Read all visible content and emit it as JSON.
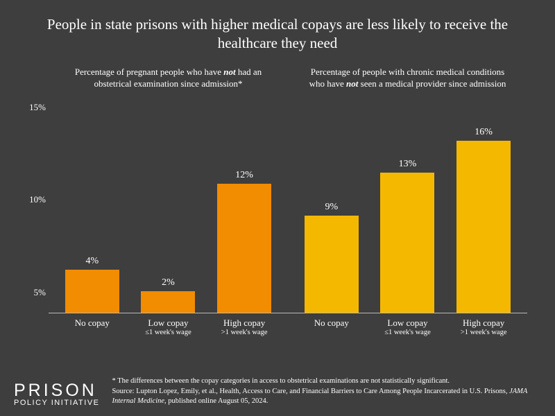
{
  "title": "People in state prisons with higher medical copays are less likely to receive the healthcare they need",
  "y_axis": {
    "max": 18,
    "ticks": [
      5,
      10,
      15
    ],
    "tick_labels": [
      "5%",
      "10%",
      "15%"
    ]
  },
  "panels": [
    {
      "subtitle_pre": "Percentage of pregnant people who have ",
      "subtitle_em": "not",
      "subtitle_post": " had an obstetrical examination since admission*",
      "bar_color": "#f28c00",
      "bars": [
        {
          "label": "No copay",
          "sublabel": "",
          "value": 4,
          "display": "4%"
        },
        {
          "label": "Low copay",
          "sublabel": "≤1 week's wage",
          "value": 2,
          "display": "2%"
        },
        {
          "label": "High copay",
          "sublabel": ">1 week's wage",
          "value": 12,
          "display": "12%"
        }
      ]
    },
    {
      "subtitle_pre": "Percentage of people with chronic medical conditions who have ",
      "subtitle_em": "not",
      "subtitle_post": " seen a medical provider since admission",
      "bar_color": "#f5b800",
      "bars": [
        {
          "label": "No copay",
          "sublabel": "",
          "value": 9,
          "display": "9%"
        },
        {
          "label": "Low copay",
          "sublabel": "≤1 week's wage",
          "value": 13,
          "display": "13%"
        },
        {
          "label": "High copay",
          "sublabel": ">1 week's wage",
          "value": 16,
          "display": "16%"
        }
      ]
    }
  ],
  "logo": {
    "top": "PRISON",
    "bottom": "POLICY INITIATIVE"
  },
  "footnote": {
    "line1": "* The differences between the copay categories in access to obstetrical examinations are not statistically significant.",
    "line2_pre": "Source: Lupton Lopez, Emily, et al., Health, Access to Care, and Financial Barriers to Care Among People Incarcerated in U.S. Prisons, ",
    "line2_em": "JAMA Internal Medicine",
    "line2_post": ", published online August 05, 2024."
  },
  "colors": {
    "background": "#3e3e3e",
    "text": "#ffffff",
    "axis": "#bbbbbb"
  }
}
